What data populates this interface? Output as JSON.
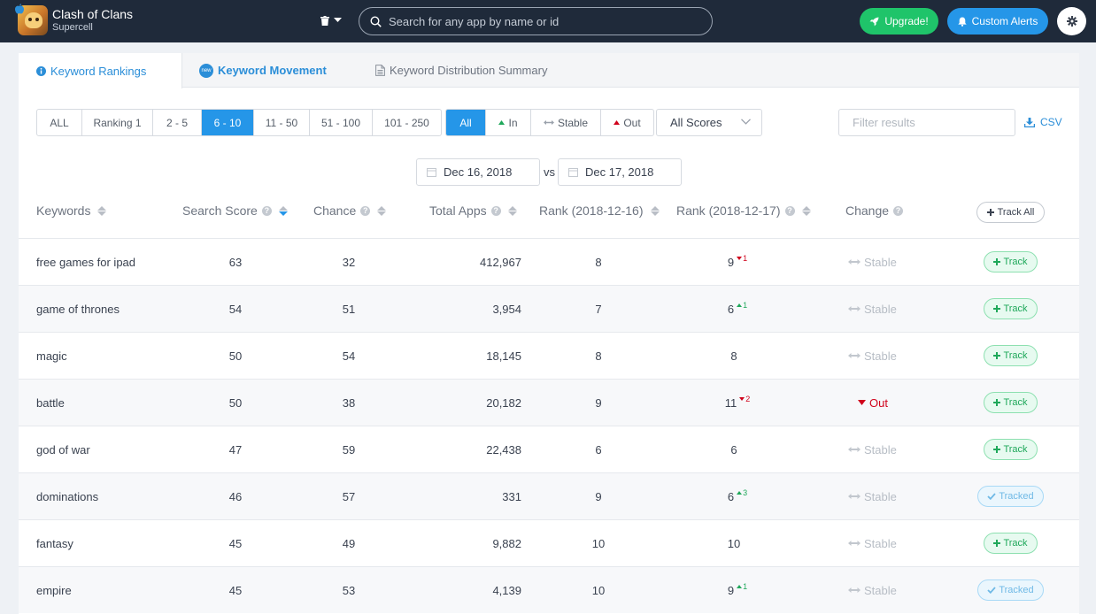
{
  "app": {
    "name": "Clash of Clans",
    "developer": "Supercell"
  },
  "search": {
    "placeholder": "Search for any app by name or id"
  },
  "header": {
    "upgrade_label": "Upgrade!",
    "alerts_label": "Custom Alerts"
  },
  "tabs": [
    {
      "label": "Keyword Rankings"
    },
    {
      "label": "Keyword Movement",
      "badge": "new"
    },
    {
      "label": "Keyword Distribution Summary"
    }
  ],
  "rank_filters": [
    "ALL",
    "Ranking 1",
    "2 - 5",
    "6 - 10",
    "11 - 50",
    "51 - 100",
    "101 - 250"
  ],
  "rank_filter_selected": "6 - 10",
  "movement_filters": [
    "All",
    "In",
    "Stable",
    "Out"
  ],
  "movement_filter_selected": "All",
  "scores_select": "All Scores",
  "filter_placeholder": "Filter results",
  "csv_label": "CSV",
  "dates": {
    "from": "Dec 16, 2018",
    "vs": "vs",
    "to": "Dec 17, 2018"
  },
  "columns": {
    "keywords": "Keywords",
    "search_score": "Search Score",
    "chance": "Chance",
    "total_apps": "Total Apps",
    "rank_a": "Rank (2018-12-16)",
    "rank_b": "Rank (2018-12-17)",
    "change": "Change",
    "track_all": "Track All"
  },
  "rows": [
    {
      "keyword": "free games for ipad",
      "score": "63",
      "chance": "32",
      "total": "412,967",
      "rank_a": "8",
      "rank_b": "9",
      "delta": "1",
      "delta_dir": "down",
      "change": "Stable",
      "track": "Track"
    },
    {
      "keyword": "game of thrones",
      "score": "54",
      "chance": "51",
      "total": "3,954",
      "rank_a": "7",
      "rank_b": "6",
      "delta": "1",
      "delta_dir": "up",
      "change": "Stable",
      "track": "Track"
    },
    {
      "keyword": "magic",
      "score": "50",
      "chance": "54",
      "total": "18,145",
      "rank_a": "8",
      "rank_b": "8",
      "delta": "",
      "delta_dir": "",
      "change": "Stable",
      "track": "Track"
    },
    {
      "keyword": "battle",
      "score": "50",
      "chance": "38",
      "total": "20,182",
      "rank_a": "9",
      "rank_b": "11",
      "delta": "2",
      "delta_dir": "down",
      "change": "Out",
      "track": "Track"
    },
    {
      "keyword": "god of war",
      "score": "47",
      "chance": "59",
      "total": "22,438",
      "rank_a": "6",
      "rank_b": "6",
      "delta": "",
      "delta_dir": "",
      "change": "Stable",
      "track": "Track"
    },
    {
      "keyword": "dominations",
      "score": "46",
      "chance": "57",
      "total": "331",
      "rank_a": "9",
      "rank_b": "6",
      "delta": "3",
      "delta_dir": "up",
      "change": "Stable",
      "track": "Tracked"
    },
    {
      "keyword": "fantasy",
      "score": "45",
      "chance": "49",
      "total": "9,882",
      "rank_a": "10",
      "rank_b": "10",
      "delta": "",
      "delta_dir": "",
      "change": "Stable",
      "track": "Track"
    },
    {
      "keyword": "empire",
      "score": "45",
      "chance": "53",
      "total": "4,139",
      "rank_a": "10",
      "rank_b": "9",
      "delta": "1",
      "delta_dir": "up",
      "change": "Stable",
      "track": "Tracked"
    }
  ],
  "colors": {
    "accent": "#2596e8",
    "upgrade": "#1fc46a",
    "topbar": "#1f2a3a",
    "out": "#d0021b"
  }
}
